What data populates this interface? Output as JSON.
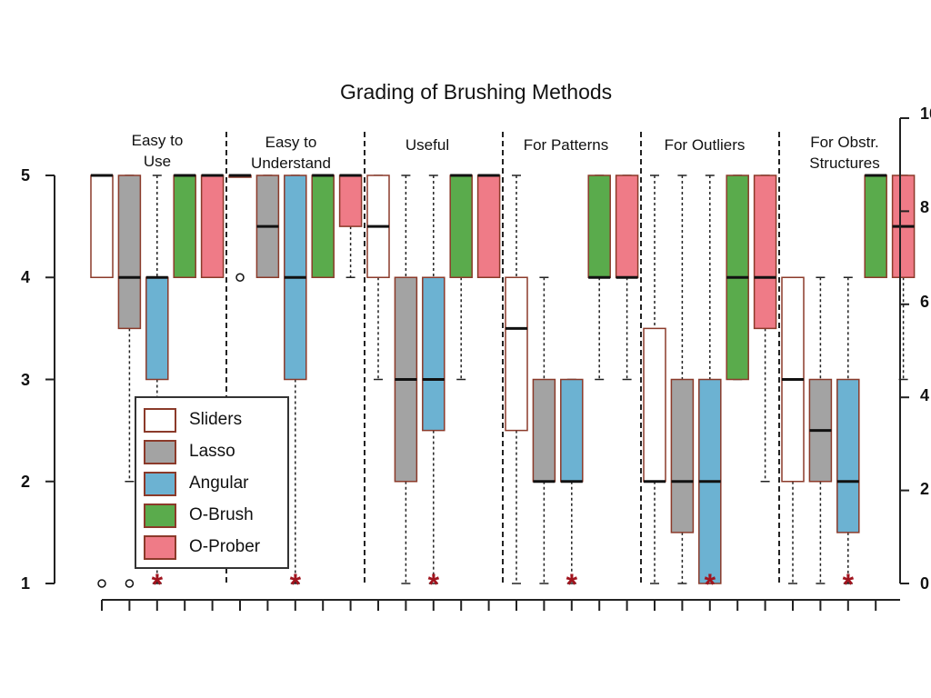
{
  "title": "Grading of Brushing Methods",
  "groups": [
    {
      "label_line1": "Easy to",
      "label_line2": "Use"
    },
    {
      "label_line1": "Easy to",
      "label_line2": "Understand"
    },
    {
      "label_line1": "Useful",
      "label_line2": ""
    },
    {
      "label_line1": "For Patterns",
      "label_line2": ""
    },
    {
      "label_line1": "For Outliers",
      "label_line2": ""
    },
    {
      "label_line1": "For Obstr.",
      "label_line2": "Structures"
    }
  ],
  "y_ticks": [
    "5",
    "4",
    "3",
    "2",
    "1"
  ],
  "right_ticks": [
    "10",
    "8",
    "6",
    "4",
    "2",
    "0"
  ],
  "legend": [
    {
      "label": "Sliders",
      "color": "#ffffff"
    },
    {
      "label": "Lasso",
      "color": "#a3a3a3"
    },
    {
      "label": "Angular",
      "color": "#6cb2d2"
    },
    {
      "label": "O-Brush",
      "color": "#5aab4c"
    },
    {
      "label": "O-Prober",
      "color": "#ef7b87"
    }
  ],
  "chart_data": {
    "type": "boxplot",
    "title": "Grading of Brushing Methods",
    "ylim": [
      1,
      5
    ],
    "y_ticks": [
      1,
      2,
      3,
      4,
      5
    ],
    "series_names": [
      "Sliders",
      "Lasso",
      "Angular",
      "O-Brush",
      "O-Prober"
    ],
    "series_colors": [
      "#ffffff",
      "#a3a3a3",
      "#6cb2d2",
      "#5aab4c",
      "#ef7b87"
    ],
    "categories": [
      "Easy to Use",
      "Easy to Understand",
      "Useful",
      "For Patterns",
      "For Outliers",
      "For Obstr. Structures"
    ],
    "boxes": [
      [
        {
          "q1": 4,
          "median": 5,
          "q3": 5,
          "wlo": 4,
          "whi": 5,
          "outliers": [
            1
          ]
        },
        {
          "q1": 3.5,
          "median": 4,
          "q3": 5,
          "wlo": 2,
          "whi": 5,
          "outliers": [
            1
          ]
        },
        {
          "q1": 3,
          "median": 4,
          "q3": 4,
          "wlo": 1,
          "whi": 5,
          "star": true
        },
        {
          "q1": 4,
          "median": 5,
          "q3": 5,
          "wlo": 4,
          "whi": 5
        },
        {
          "q1": 4,
          "median": 5,
          "q3": 5,
          "wlo": 4,
          "whi": 5
        }
      ],
      [
        {
          "q1": 5,
          "median": 5,
          "q3": 5,
          "wlo": 5,
          "whi": 5,
          "outliers": [
            4
          ]
        },
        {
          "q1": 4,
          "median": 4.5,
          "q3": 5,
          "wlo": 4,
          "whi": 5
        },
        {
          "q1": 3,
          "median": 4,
          "q3": 5,
          "wlo": 1,
          "whi": 5,
          "star": true
        },
        {
          "q1": 4,
          "median": 5,
          "q3": 5,
          "wlo": 4,
          "whi": 5
        },
        {
          "q1": 4.5,
          "median": 5,
          "q3": 5,
          "wlo": 4,
          "whi": 5
        }
      ],
      [
        {
          "q1": 4,
          "median": 4.5,
          "q3": 5,
          "wlo": 3,
          "whi": 5
        },
        {
          "q1": 2,
          "median": 3,
          "q3": 4,
          "wlo": 1,
          "whi": 5
        },
        {
          "q1": 2.5,
          "median": 3,
          "q3": 4,
          "wlo": 1,
          "whi": 5,
          "star": true
        },
        {
          "q1": 4,
          "median": 5,
          "q3": 5,
          "wlo": 3,
          "whi": 5
        },
        {
          "q1": 4,
          "median": 5,
          "q3": 5,
          "wlo": 4,
          "whi": 5
        }
      ],
      [
        {
          "q1": 2.5,
          "median": 3.5,
          "q3": 4,
          "wlo": 1,
          "whi": 5
        },
        {
          "q1": 2,
          "median": 2,
          "q3": 3,
          "wlo": 1,
          "whi": 4
        },
        {
          "q1": 2,
          "median": 2,
          "q3": 3,
          "wlo": 1,
          "whi": 3,
          "star": true
        },
        {
          "q1": 4,
          "median": 4,
          "q3": 5,
          "wlo": 3,
          "whi": 5
        },
        {
          "q1": 4,
          "median": 4,
          "q3": 5,
          "wlo": 3,
          "whi": 5
        }
      ],
      [
        {
          "q1": 2,
          "median": 2,
          "q3": 3.5,
          "wlo": 1,
          "whi": 5
        },
        {
          "q1": 1.5,
          "median": 2,
          "q3": 3,
          "wlo": 1,
          "whi": 5
        },
        {
          "q1": 1,
          "median": 2,
          "q3": 3,
          "wlo": 1,
          "whi": 5,
          "star": true
        },
        {
          "q1": 3,
          "median": 4,
          "q3": 5,
          "wlo": 3,
          "whi": 5
        },
        {
          "q1": 3.5,
          "median": 4,
          "q3": 5,
          "wlo": 2,
          "whi": 5
        }
      ],
      [
        {
          "q1": 2,
          "median": 3,
          "q3": 4,
          "wlo": 1,
          "whi": 4
        },
        {
          "q1": 2,
          "median": 2.5,
          "q3": 3,
          "wlo": 1,
          "whi": 4
        },
        {
          "q1": 1.5,
          "median": 2,
          "q3": 3,
          "wlo": 1,
          "whi": 4,
          "star": true
        },
        {
          "q1": 4,
          "median": 5,
          "q3": 5,
          "wlo": 4,
          "whi": 5
        },
        {
          "q1": 4,
          "median": 4.5,
          "q3": 5,
          "wlo": 3,
          "whi": 5
        }
      ]
    ],
    "legend_position": "bottom-left"
  }
}
